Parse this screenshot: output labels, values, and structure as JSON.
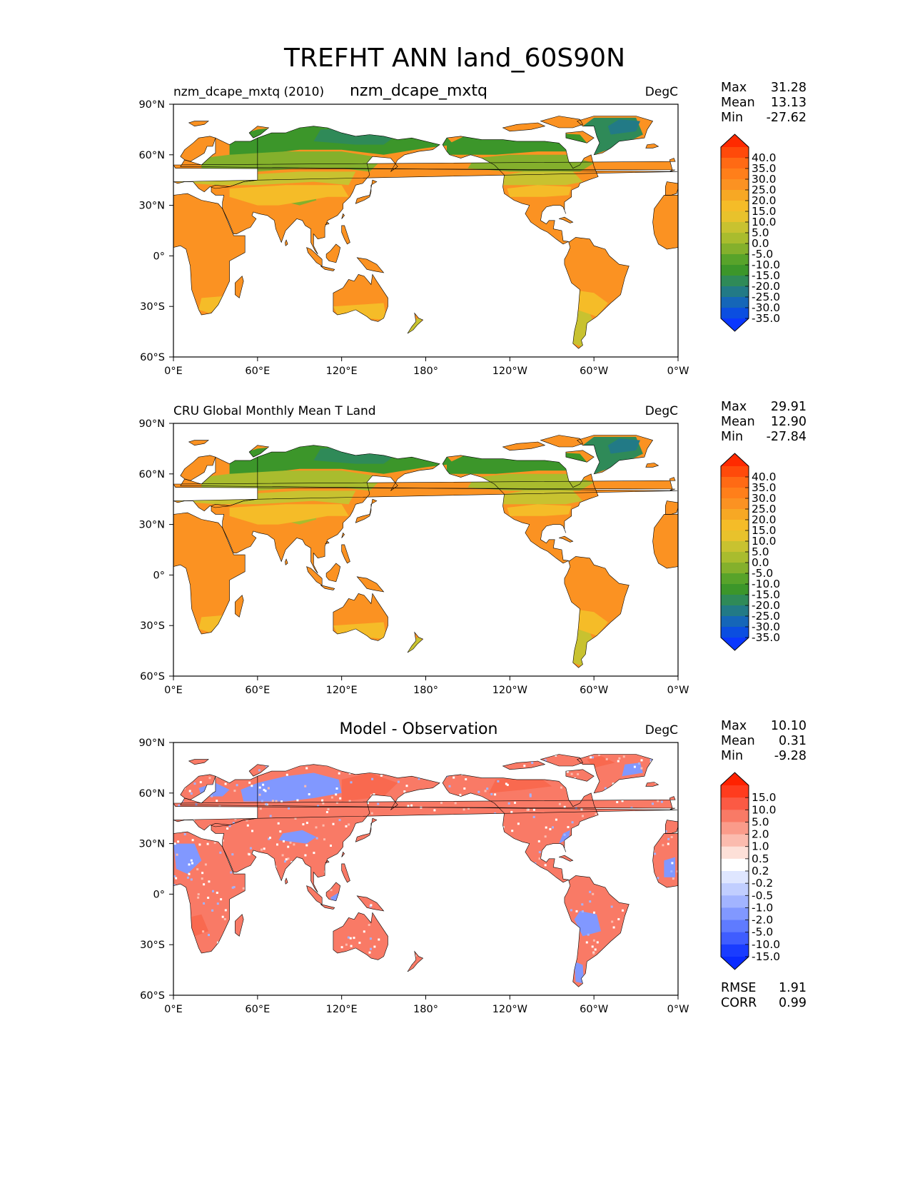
{
  "figure": {
    "title": "TREFHT ANN land_60S90N"
  },
  "chart_data": [
    {
      "type": "heatmap",
      "panel": "test",
      "left_title": "nzm_dcape_mxtq (2010)",
      "center_title": "nzm_dcape_mxtq",
      "units": "DegC",
      "stats": [
        {
          "label": "Max",
          "value": "31.28"
        },
        {
          "label": "Mean",
          "value": "13.13"
        },
        {
          "label": "Min",
          "value": "-27.62"
        }
      ],
      "colorbar": {
        "ticks": [
          "40.0",
          "35.0",
          "30.0",
          "25.0",
          "20.0",
          "15.0",
          "10.0",
          "5.0",
          "0.0",
          "-5.0",
          "-10.0",
          "-15.0",
          "-20.0",
          "-25.0",
          "-30.0",
          "-35.0"
        ],
        "colors": [
          "#ff2a00",
          "#ff4a0a",
          "#ff6a14",
          "#ff7f1a",
          "#fb9222",
          "#f7a824",
          "#f5bc28",
          "#e8c22c",
          "#c8c230",
          "#a9bc2e",
          "#84b02c",
          "#58a32a",
          "#3c962a",
          "#2f8a58",
          "#227a86",
          "#1566b8",
          "#0b4ee0",
          "#0a37ff"
        ]
      },
      "lon_ticks": [
        "0°E",
        "60°E",
        "120°E",
        "180°",
        "120°W",
        "60°W",
        "0°W"
      ],
      "lat_ticks": [
        "90°N",
        "60°N",
        "30°N",
        "0°",
        "30°S",
        "60°S"
      ],
      "lon_range": [
        0,
        360
      ],
      "lat_range": [
        -60,
        90
      ],
      "field_colors": {
        "hot": "#fb9222",
        "warm": "#f5bc28",
        "mild": "#c8c230",
        "cool": "#84b02c",
        "cold": "#3c962a",
        "frigid": "#2f8a58",
        "ice": "#227a86"
      }
    },
    {
      "type": "heatmap",
      "panel": "reference",
      "left_title": "CRU Global Monthly Mean T Land",
      "center_title": "",
      "units": "DegC",
      "stats": [
        {
          "label": "Max",
          "value": "29.91"
        },
        {
          "label": "Mean",
          "value": "12.90"
        },
        {
          "label": "Min",
          "value": "-27.84"
        }
      ],
      "colorbar": {
        "ticks": [
          "40.0",
          "35.0",
          "30.0",
          "25.0",
          "20.0",
          "15.0",
          "10.0",
          "5.0",
          "0.0",
          "-5.0",
          "-10.0",
          "-15.0",
          "-20.0",
          "-25.0",
          "-30.0",
          "-35.0"
        ],
        "colors": [
          "#ff2a00",
          "#ff4a0a",
          "#ff6a14",
          "#ff7f1a",
          "#fb9222",
          "#f7a824",
          "#f5bc28",
          "#e8c22c",
          "#c8c230",
          "#a9bc2e",
          "#84b02c",
          "#58a32a",
          "#3c962a",
          "#2f8a58",
          "#227a86",
          "#1566b8",
          "#0b4ee0",
          "#0a37ff"
        ]
      },
      "lon_ticks": [
        "0°E",
        "60°E",
        "120°E",
        "180°",
        "120°W",
        "60°W",
        "0°W"
      ],
      "lat_ticks": [
        "90°N",
        "60°N",
        "30°N",
        "0°",
        "30°S",
        "60°S"
      ],
      "lon_range": [
        0,
        360
      ],
      "lat_range": [
        -60,
        90
      ],
      "field_colors": {
        "hot": "#fb9222",
        "warm": "#f5bc28",
        "mild": "#c8c230",
        "cool": "#a9bc2e",
        "cold": "#3c962a",
        "frigid": "#2f8a58",
        "ice": "#227a86"
      }
    },
    {
      "type": "heatmap",
      "panel": "difference",
      "left_title": "",
      "center_title": "Model - Observation",
      "units": "DegC",
      "stats": [
        {
          "label": "Max",
          "value": "10.10"
        },
        {
          "label": "Mean",
          "value": "0.31"
        },
        {
          "label": "Min",
          "value": "-9.28"
        }
      ],
      "extra_stats": [
        {
          "label": "RMSE",
          "value": "1.91"
        },
        {
          "label": "CORR",
          "value": "0.99"
        }
      ],
      "colorbar": {
        "ticks": [
          "15.0",
          "10.0",
          "5.0",
          "2.0",
          "1.0",
          "0.5",
          "0.2",
          "-0.2",
          "-0.5",
          "-1.0",
          "-2.0",
          "-5.0",
          "-10.0",
          "-15.0"
        ],
        "colors": [
          "#ff2200",
          "#ff3c1e",
          "#fb5a44",
          "#f97a66",
          "#fa9b8a",
          "#fbbbae",
          "#fde0d8",
          "#ffffff",
          "#dfe6ff",
          "#c1ceff",
          "#a2b4ff",
          "#8198ff",
          "#5f7bff",
          "#3f5dff",
          "#1a3cff",
          "#0a2bff"
        ]
      },
      "lon_ticks": [
        "0°E",
        "60°E",
        "120°E",
        "180°",
        "120°W",
        "60°W",
        "0°W"
      ],
      "lat_ticks": [
        "90°N",
        "60°N",
        "30°N",
        "0°",
        "30°S",
        "60°S"
      ],
      "lon_range": [
        0,
        360
      ],
      "lat_range": [
        -60,
        90
      ],
      "field_colors": {
        "hot": "#f97a66",
        "warm": "#fa9b8a",
        "mild": "#fbbbae",
        "cool": "#fa9b8a",
        "cold": "#8198ff",
        "frigid": "#fa9b8a",
        "ice": "#5f7bff"
      }
    }
  ]
}
